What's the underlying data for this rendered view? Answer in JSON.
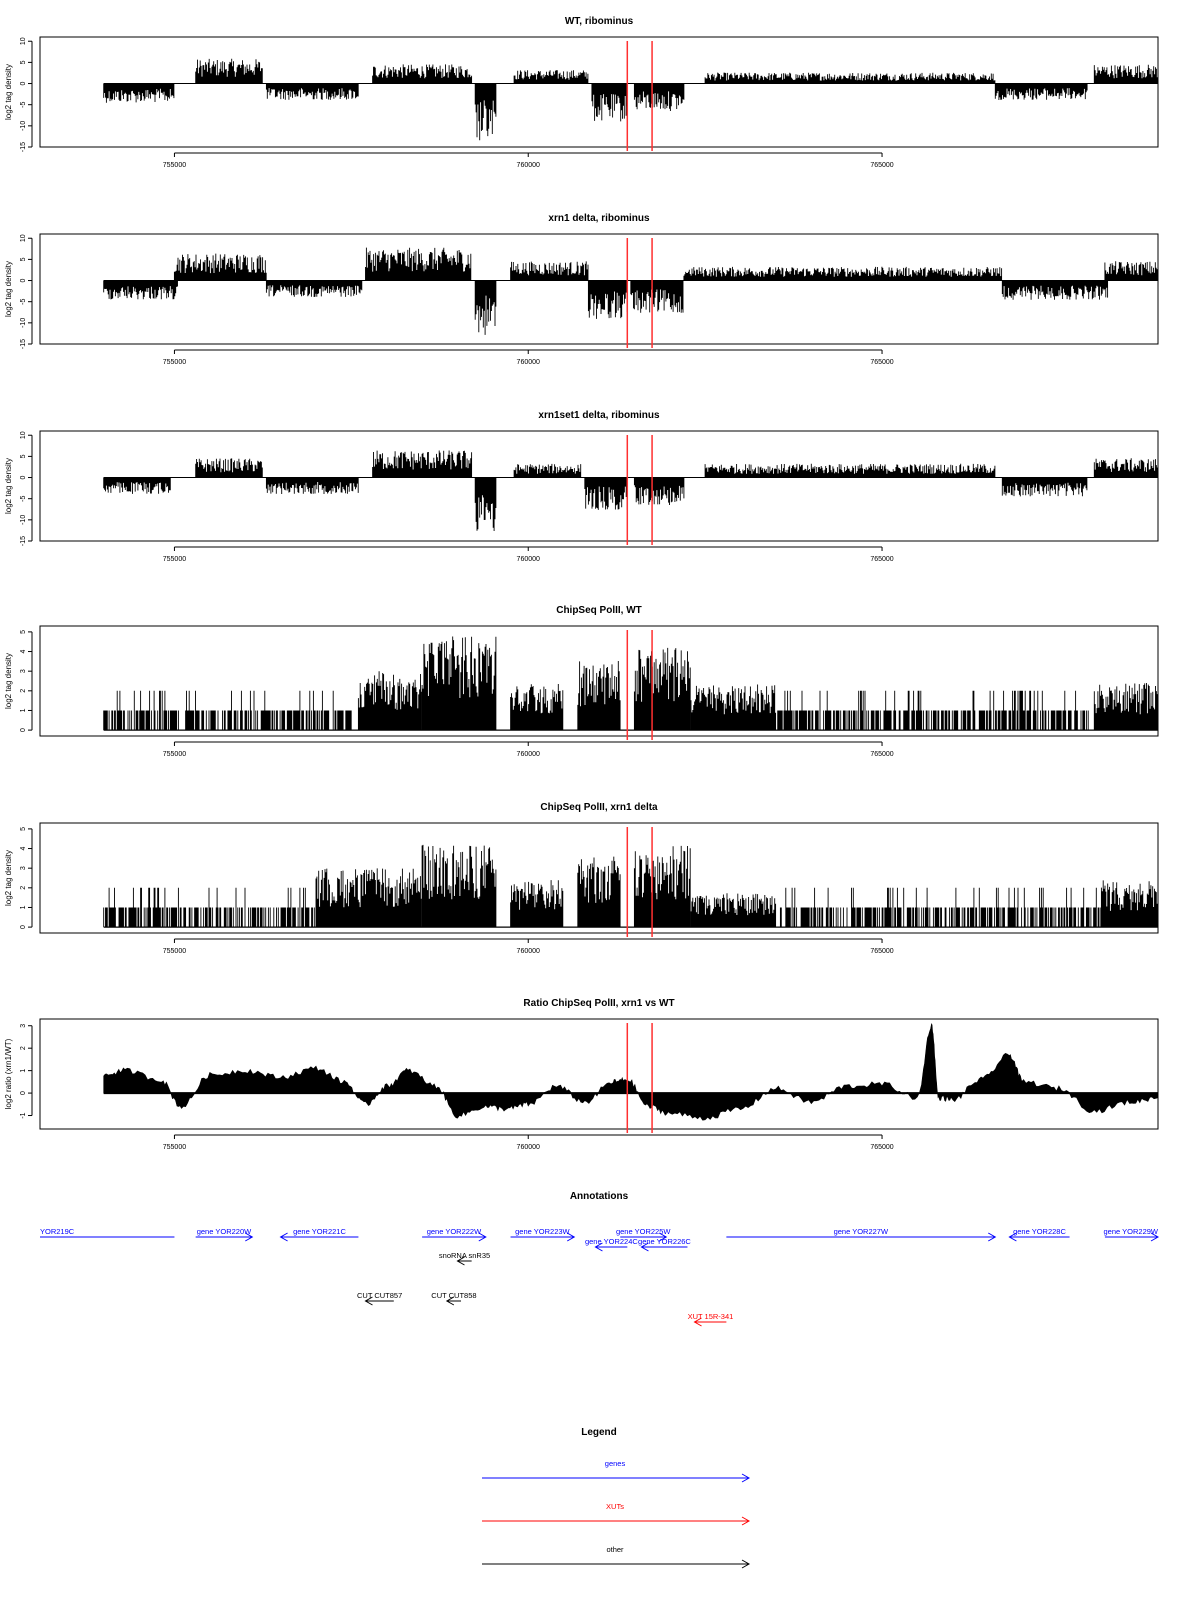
{
  "x_axis": {
    "range": [
      753100,
      768900
    ],
    "ticks": [
      755000,
      760000,
      765000
    ],
    "tick_labels": [
      "755000",
      "760000",
      "765000"
    ]
  },
  "marker_lines": {
    "positions": [
      761400,
      761750
    ],
    "color": "#ff3030"
  },
  "chart_data": [
    {
      "type": "bar",
      "title": "WT, ribominus",
      "ylabel": "log2 tag density",
      "ylim": [
        -15,
        11
      ],
      "yticks": [
        -15,
        -10,
        -5,
        0,
        5,
        10
      ],
      "grid": false,
      "color": "#000000",
      "segments": [
        {
          "start": 754000,
          "end": 755000,
          "y": -3.5
        },
        {
          "start": 755300,
          "end": 756250,
          "y": 4.5
        },
        {
          "start": 756300,
          "end": 757600,
          "y": -3
        },
        {
          "start": 757800,
          "end": 759200,
          "y": 3.5
        },
        {
          "start": 759250,
          "end": 759550,
          "y": -11
        },
        {
          "start": 759800,
          "end": 760850,
          "y": 2.5
        },
        {
          "start": 760900,
          "end": 761400,
          "y": -7
        },
        {
          "start": 761500,
          "end": 762200,
          "y": -5
        },
        {
          "start": 762500,
          "end": 766600,
          "y": 2
        },
        {
          "start": 766600,
          "end": 767900,
          "y": -3
        },
        {
          "start": 768000,
          "end": 768900,
          "y": 3.5
        }
      ]
    },
    {
      "type": "bar",
      "title": "xrn1 delta, ribominus",
      "ylabel": "log2 tag density",
      "ylim": [
        -15,
        11
      ],
      "yticks": [
        -15,
        -10,
        -5,
        0,
        5,
        10
      ],
      "grid": false,
      "color": "#000000",
      "segments": [
        {
          "start": 754000,
          "end": 755050,
          "y": -3.5
        },
        {
          "start": 755000,
          "end": 756300,
          "y": 5
        },
        {
          "start": 756300,
          "end": 757650,
          "y": -3
        },
        {
          "start": 757700,
          "end": 759200,
          "y": 6
        },
        {
          "start": 759250,
          "end": 759550,
          "y": -10
        },
        {
          "start": 759750,
          "end": 760850,
          "y": 3.5
        },
        {
          "start": 760850,
          "end": 761400,
          "y": -7
        },
        {
          "start": 761450,
          "end": 762200,
          "y": -6
        },
        {
          "start": 762200,
          "end": 766700,
          "y": 2.5
        },
        {
          "start": 766700,
          "end": 768200,
          "y": -3.5
        },
        {
          "start": 768150,
          "end": 768900,
          "y": 3.5
        }
      ]
    },
    {
      "type": "bar",
      "title": "xrn1set1 delta, ribominus",
      "ylabel": "log2 tag density",
      "ylim": [
        -15,
        11
      ],
      "yticks": [
        -15,
        -10,
        -5,
        0,
        5,
        10
      ],
      "grid": false,
      "color": "#000000",
      "segments": [
        {
          "start": 754000,
          "end": 754950,
          "y": -3
        },
        {
          "start": 755300,
          "end": 756250,
          "y": 3.5
        },
        {
          "start": 756300,
          "end": 757600,
          "y": -3
        },
        {
          "start": 757800,
          "end": 759200,
          "y": 5
        },
        {
          "start": 759250,
          "end": 759550,
          "y": -10
        },
        {
          "start": 759800,
          "end": 760750,
          "y": 2.5
        },
        {
          "start": 760800,
          "end": 761400,
          "y": -6
        },
        {
          "start": 761500,
          "end": 762200,
          "y": -5
        },
        {
          "start": 762500,
          "end": 766600,
          "y": 2.5
        },
        {
          "start": 766700,
          "end": 767900,
          "y": -3.5
        },
        {
          "start": 768000,
          "end": 768900,
          "y": 3.5
        }
      ]
    },
    {
      "type": "bar",
      "title": "ChipSeq PolII, WT",
      "ylabel": "log2 tag density",
      "ylim": [
        -0.3,
        5.3
      ],
      "yticks": [
        0,
        1,
        2,
        3,
        4,
        5
      ],
      "grid": false,
      "color": "#000000",
      "segments": [
        {
          "start": 754000,
          "end": 757500,
          "y": 1
        },
        {
          "start": 757600,
          "end": 758500,
          "y": 2.5
        },
        {
          "start": 758500,
          "end": 759550,
          "y": 4
        },
        {
          "start": 759750,
          "end": 760500,
          "y": 2
        },
        {
          "start": 760700,
          "end": 761300,
          "y": 3
        },
        {
          "start": 761500,
          "end": 762300,
          "y": 3.5
        },
        {
          "start": 762300,
          "end": 763500,
          "y": 2
        },
        {
          "start": 763500,
          "end": 768000,
          "y": 1
        },
        {
          "start": 768000,
          "end": 768900,
          "y": 2
        }
      ]
    },
    {
      "type": "bar",
      "title": "ChipSeq PolII, xrn1 delta",
      "ylabel": "log2 tag density",
      "ylim": [
        -0.3,
        5.3
      ],
      "yticks": [
        0,
        1,
        2,
        3,
        4,
        5
      ],
      "grid": false,
      "color": "#000000",
      "segments": [
        {
          "start": 754000,
          "end": 757000,
          "y": 1
        },
        {
          "start": 757000,
          "end": 758500,
          "y": 2.5
        },
        {
          "start": 758500,
          "end": 759550,
          "y": 3.5
        },
        {
          "start": 759750,
          "end": 760500,
          "y": 2
        },
        {
          "start": 760700,
          "end": 761300,
          "y": 3
        },
        {
          "start": 761500,
          "end": 762300,
          "y": 3.5
        },
        {
          "start": 762300,
          "end": 763500,
          "y": 1.5
        },
        {
          "start": 763500,
          "end": 768100,
          "y": 1
        },
        {
          "start": 768100,
          "end": 768900,
          "y": 2
        }
      ]
    },
    {
      "type": "area",
      "title": "Ratio ChipSeq PolII, xrn1 vs WT",
      "ylabel": "log2 ratio (xrn1/WT)",
      "ylim": [
        -1.6,
        3.3
      ],
      "yticks": [
        -1,
        0,
        1,
        2,
        3
      ],
      "grid": false,
      "color": "#000000",
      "x": [
        754000,
        754300,
        754800,
        755100,
        755500,
        756000,
        756500,
        757000,
        757400,
        757700,
        758000,
        758300,
        758700,
        759000,
        759400,
        759700,
        760000,
        760400,
        760800,
        761200,
        761400,
        761700,
        762000,
        762500,
        763000,
        763500,
        764000,
        764500,
        765000,
        765500,
        765700,
        765800,
        766000,
        766400,
        766800,
        767000,
        767500,
        768000,
        768500,
        768900
      ],
      "y": [
        0.8,
        1.0,
        0.6,
        -0.6,
        0.8,
        1.0,
        0.7,
        1.1,
        0.5,
        -0.5,
        0.3,
        1.0,
        0.3,
        -1.0,
        -0.6,
        -0.7,
        -0.5,
        0.3,
        -0.4,
        0.5,
        0.6,
        -0.6,
        -0.9,
        -1.1,
        -0.7,
        0.2,
        -0.4,
        0.3,
        0.4,
        -0.2,
        3.0,
        -0.2,
        -0.3,
        0.6,
        1.7,
        0.5,
        0.2,
        -0.8,
        -0.4,
        -0.2
      ]
    }
  ],
  "annotations": {
    "title": "Annotations",
    "items": [
      {
        "label": "YOR219C",
        "start": 753100,
        "end": 755000,
        "dir": "left",
        "row": 0,
        "color": "#0000ff",
        "label_pos": "start"
      },
      {
        "label": "gene YOR220W",
        "start": 755300,
        "end": 756100,
        "dir": "right",
        "row": 0,
        "color": "#0000ff"
      },
      {
        "label": "gene YOR221C",
        "start": 756500,
        "end": 757600,
        "dir": "left",
        "row": 0,
        "color": "#0000ff"
      },
      {
        "label": "gene YOR222W",
        "start": 758500,
        "end": 759400,
        "dir": "right",
        "row": 0,
        "color": "#0000ff"
      },
      {
        "label": "gene YOR223W",
        "start": 759750,
        "end": 760650,
        "dir": "right",
        "row": 0,
        "color": "#0000ff"
      },
      {
        "label": "gene YOR225W",
        "start": 761300,
        "end": 761950,
        "dir": "right",
        "row": 0,
        "color": "#0000ff"
      },
      {
        "label": "gene YOR224C",
        "start": 760950,
        "end": 761400,
        "dir": "left",
        "row": 1,
        "color": "#0000ff"
      },
      {
        "label": "gene YOR226C",
        "start": 761600,
        "end": 762250,
        "dir": "left",
        "row": 1,
        "color": "#0000ff"
      },
      {
        "label": "gene YOR227W",
        "start": 762800,
        "end": 766600,
        "dir": "right",
        "row": 0,
        "color": "#0000ff"
      },
      {
        "label": "gene YOR228C",
        "start": 766800,
        "end": 767650,
        "dir": "left",
        "row": 0,
        "color": "#0000ff"
      },
      {
        "label": "gene YOR229W",
        "start": 768150,
        "end": 768900,
        "dir": "right",
        "row": 0,
        "color": "#0000ff",
        "label_pos": "end"
      },
      {
        "label": "snoRNA snR35",
        "start": 759000,
        "end": 759200,
        "dir": "left",
        "row": 2,
        "color": "#000000"
      },
      {
        "label": "CUT CUT857",
        "start": 757700,
        "end": 758100,
        "dir": "left",
        "row": 3,
        "color": "#000000"
      },
      {
        "label": "CUT CUT858",
        "start": 758850,
        "end": 759050,
        "dir": "left",
        "row": 3,
        "color": "#000000"
      },
      {
        "label": "XUT 15R-341",
        "start": 762350,
        "end": 762800,
        "dir": "left",
        "row": 4,
        "color": "#ff0000"
      }
    ]
  },
  "legend": {
    "title": "Legend",
    "entries": [
      {
        "label": "genes",
        "color": "#0000ff"
      },
      {
        "label": "XUTs",
        "color": "#ff0000"
      },
      {
        "label": "other",
        "color": "#000000"
      }
    ]
  }
}
